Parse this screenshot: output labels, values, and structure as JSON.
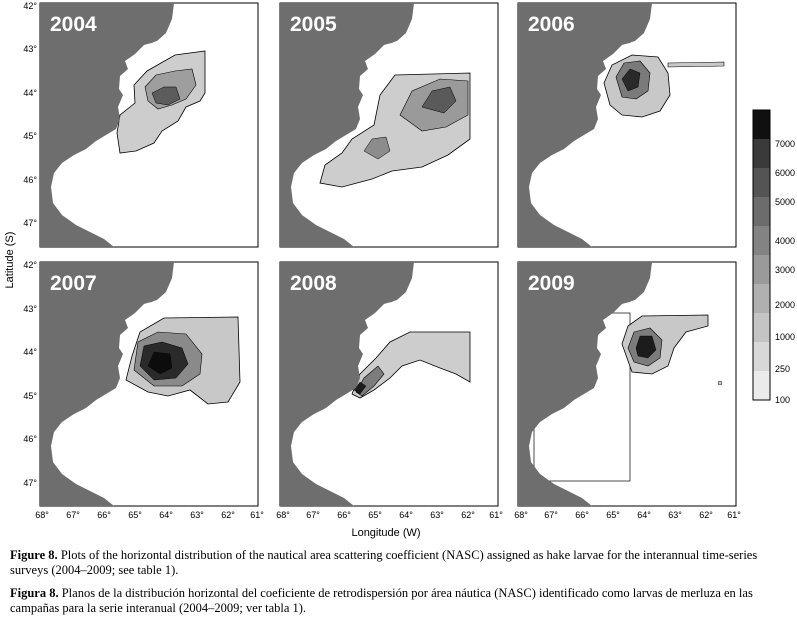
{
  "panels": [
    {
      "year": "2004"
    },
    {
      "year": "2005"
    },
    {
      "year": "2006"
    },
    {
      "year": "2007"
    },
    {
      "year": "2008"
    },
    {
      "year": "2009"
    }
  ],
  "axes": {
    "xlabel": "Longitude (W)",
    "ylabel": "Latitude (S)",
    "x_ticks": [
      "68°",
      "67°",
      "66°",
      "65°",
      "64°",
      "63°",
      "62°",
      "61°"
    ],
    "y_ticks_top": [
      "42°",
      "43°",
      "44°",
      "45°",
      "46°",
      "47°"
    ],
    "y_ticks_bottom": [
      "42°",
      "43°",
      "44°",
      "45°",
      "46°",
      "47°"
    ]
  },
  "colors": {
    "land": "#6e6e6e",
    "ramp": [
      "#ebebeb",
      "#d8d8d8",
      "#c4c4c4",
      "#b0b0b0",
      "#9a9a9a",
      "#838383",
      "#6c6c6c",
      "#545454",
      "#3a3a3a",
      "#101010"
    ]
  },
  "legend": {
    "labels": [
      "7000",
      "6000",
      "5000",
      "4000",
      "3000",
      "2000",
      "1000",
      "250",
      "100"
    ]
  },
  "caption": {
    "en_label": "Figure 8.",
    "en_text": " Plots of the horizontal distribution of the nautical area scattering coefficient (NASC) assigned as hake larvae for the interannual time-series surveys (2004–2009; see table 1).",
    "es_label": "Figura 8.",
    "es_text": " Planos de la distribución horizontal del coeficiente de retrodispersión por área náutica (NASC) identificado como larvas de merluza en las campañas para la serie interanual (2004–2009; ver tabla 1)."
  }
}
